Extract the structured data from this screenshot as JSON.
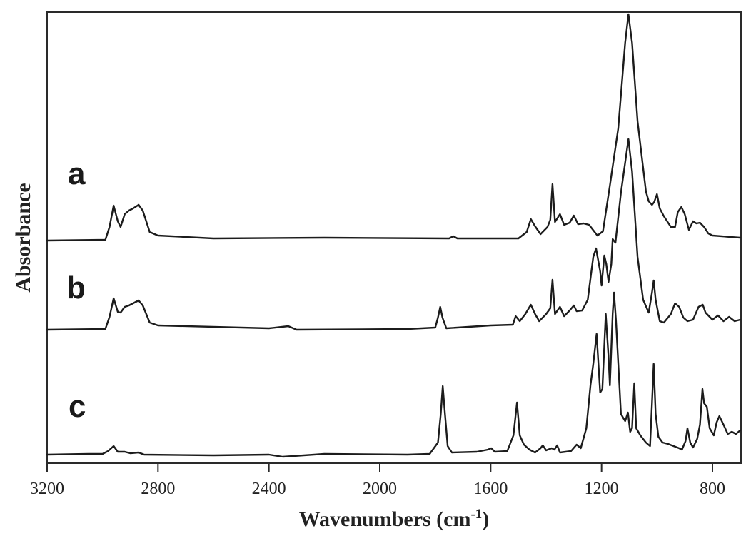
{
  "chart_data": {
    "type": "line",
    "title": "",
    "xlabel": "Wavenumbers (cm-1)",
    "xlabel_main": "Wavenumbers (cm",
    "xlabel_sup": "-1",
    "xlabel_close": ")",
    "ylabel": "Absorbance",
    "xlim": [
      3200,
      700
    ],
    "x_reversed": true,
    "x_ticks": [
      3200,
      2800,
      2400,
      2000,
      1600,
      1200,
      800
    ],
    "x_tick_labels": [
      "3200",
      "2800",
      "2400",
      "2000",
      "1600",
      "1200",
      "800"
    ],
    "y_ticks": [],
    "grid": false,
    "legend": "inline labels a, b, c",
    "note": "Stacked FTIR spectra; y values given in plot-pixel units (smaller = higher absorbance), vertically offset per series.",
    "series": [
      {
        "name": "a",
        "label": "a",
        "points": [
          [
            3200,
            337
          ],
          [
            2990,
            336
          ],
          [
            2975,
            318
          ],
          [
            2960,
            288
          ],
          [
            2945,
            310
          ],
          [
            2935,
            318
          ],
          [
            2920,
            300
          ],
          [
            2905,
            295
          ],
          [
            2890,
            292
          ],
          [
            2870,
            287
          ],
          [
            2855,
            295
          ],
          [
            2830,
            325
          ],
          [
            2800,
            330
          ],
          [
            2600,
            334
          ],
          [
            2200,
            333
          ],
          [
            1750,
            334
          ],
          [
            1735,
            331
          ],
          [
            1720,
            334
          ],
          [
            1500,
            334
          ],
          [
            1470,
            325
          ],
          [
            1455,
            307
          ],
          [
            1440,
            317
          ],
          [
            1420,
            328
          ],
          [
            1395,
            318
          ],
          [
            1385,
            308
          ],
          [
            1377,
            258
          ],
          [
            1368,
            311
          ],
          [
            1350,
            300
          ],
          [
            1335,
            315
          ],
          [
            1315,
            312
          ],
          [
            1300,
            302
          ],
          [
            1285,
            314
          ],
          [
            1265,
            313
          ],
          [
            1245,
            315
          ],
          [
            1215,
            330
          ],
          [
            1195,
            324
          ],
          [
            1170,
            260
          ],
          [
            1140,
            180
          ],
          [
            1115,
            60
          ],
          [
            1103,
            20
          ],
          [
            1090,
            60
          ],
          [
            1070,
            170
          ],
          [
            1040,
            268
          ],
          [
            1030,
            282
          ],
          [
            1018,
            287
          ],
          [
            1010,
            283
          ],
          [
            1000,
            272
          ],
          [
            990,
            292
          ],
          [
            975,
            303
          ],
          [
            950,
            318
          ],
          [
            935,
            318
          ],
          [
            925,
            297
          ],
          [
            912,
            290
          ],
          [
            900,
            300
          ],
          [
            885,
            322
          ],
          [
            870,
            310
          ],
          [
            858,
            313
          ],
          [
            845,
            312
          ],
          [
            830,
            318
          ],
          [
            815,
            327
          ],
          [
            800,
            330
          ],
          [
            700,
            333
          ]
        ]
      },
      {
        "name": "b",
        "label": "b",
        "points": [
          [
            3200,
            462
          ],
          [
            2990,
            461
          ],
          [
            2975,
            444
          ],
          [
            2960,
            418
          ],
          [
            2945,
            437
          ],
          [
            2935,
            438
          ],
          [
            2920,
            430
          ],
          [
            2905,
            428
          ],
          [
            2890,
            425
          ],
          [
            2870,
            421
          ],
          [
            2855,
            428
          ],
          [
            2830,
            452
          ],
          [
            2800,
            456
          ],
          [
            2400,
            460
          ],
          [
            2330,
            457
          ],
          [
            2300,
            462
          ],
          [
            1900,
            461
          ],
          [
            1800,
            459
          ],
          [
            1790,
            445
          ],
          [
            1782,
            430
          ],
          [
            1774,
            445
          ],
          [
            1760,
            460
          ],
          [
            1600,
            456
          ],
          [
            1520,
            455
          ],
          [
            1510,
            443
          ],
          [
            1495,
            450
          ],
          [
            1475,
            440
          ],
          [
            1455,
            427
          ],
          [
            1440,
            440
          ],
          [
            1425,
            450
          ],
          [
            1400,
            440
          ],
          [
            1385,
            432
          ],
          [
            1377,
            392
          ],
          [
            1368,
            440
          ],
          [
            1350,
            430
          ],
          [
            1335,
            443
          ],
          [
            1315,
            435
          ],
          [
            1300,
            428
          ],
          [
            1290,
            436
          ],
          [
            1270,
            435
          ],
          [
            1250,
            420
          ],
          [
            1230,
            360
          ],
          [
            1220,
            348
          ],
          [
            1205,
            380
          ],
          [
            1200,
            400
          ],
          [
            1190,
            358
          ],
          [
            1183,
            370
          ],
          [
            1175,
            395
          ],
          [
            1165,
            370
          ],
          [
            1160,
            335
          ],
          [
            1150,
            340
          ],
          [
            1130,
            270
          ],
          [
            1103,
            195
          ],
          [
            1090,
            240
          ],
          [
            1070,
            360
          ],
          [
            1050,
            420
          ],
          [
            1030,
            438
          ],
          [
            1018,
            410
          ],
          [
            1012,
            393
          ],
          [
            1005,
            420
          ],
          [
            990,
            450
          ],
          [
            975,
            452
          ],
          [
            950,
            440
          ],
          [
            935,
            425
          ],
          [
            920,
            430
          ],
          [
            905,
            445
          ],
          [
            890,
            450
          ],
          [
            870,
            448
          ],
          [
            850,
            430
          ],
          [
            835,
            427
          ],
          [
            825,
            438
          ],
          [
            800,
            448
          ],
          [
            780,
            442
          ],
          [
            760,
            450
          ],
          [
            740,
            444
          ],
          [
            720,
            450
          ],
          [
            700,
            448
          ]
        ]
      },
      {
        "name": "c",
        "label": "c",
        "points": [
          [
            3200,
            637
          ],
          [
            3050,
            636
          ],
          [
            3000,
            636
          ],
          [
            2980,
            632
          ],
          [
            2960,
            625
          ],
          [
            2945,
            633
          ],
          [
            2920,
            633
          ],
          [
            2900,
            635
          ],
          [
            2870,
            634
          ],
          [
            2850,
            637
          ],
          [
            2600,
            638
          ],
          [
            2400,
            637
          ],
          [
            2350,
            640
          ],
          [
            2200,
            636
          ],
          [
            1900,
            637
          ],
          [
            1820,
            636
          ],
          [
            1790,
            620
          ],
          [
            1780,
            580
          ],
          [
            1773,
            541
          ],
          [
            1765,
            580
          ],
          [
            1755,
            625
          ],
          [
            1740,
            634
          ],
          [
            1650,
            633
          ],
          [
            1610,
            630
          ],
          [
            1598,
            628
          ],
          [
            1585,
            633
          ],
          [
            1540,
            632
          ],
          [
            1518,
            610
          ],
          [
            1505,
            564
          ],
          [
            1495,
            610
          ],
          [
            1480,
            623
          ],
          [
            1460,
            630
          ],
          [
            1440,
            634
          ],
          [
            1420,
            628
          ],
          [
            1412,
            624
          ],
          [
            1400,
            631
          ],
          [
            1380,
            628
          ],
          [
            1370,
            630
          ],
          [
            1360,
            624
          ],
          [
            1350,
            634
          ],
          [
            1310,
            632
          ],
          [
            1290,
            623
          ],
          [
            1275,
            628
          ],
          [
            1255,
            600
          ],
          [
            1240,
            540
          ],
          [
            1230,
            510
          ],
          [
            1218,
            468
          ],
          [
            1205,
            550
          ],
          [
            1197,
            545
          ],
          [
            1185,
            440
          ],
          [
            1175,
            500
          ],
          [
            1170,
            540
          ],
          [
            1160,
            440
          ],
          [
            1155,
            410
          ],
          [
            1148,
            450
          ],
          [
            1130,
            580
          ],
          [
            1115,
            590
          ],
          [
            1105,
            578
          ],
          [
            1097,
            605
          ],
          [
            1090,
            600
          ],
          [
            1082,
            537
          ],
          [
            1075,
            600
          ],
          [
            1060,
            610
          ],
          [
            1040,
            620
          ],
          [
            1025,
            625
          ],
          [
            1018,
            565
          ],
          [
            1012,
            510
          ],
          [
            1005,
            580
          ],
          [
            995,
            612
          ],
          [
            980,
            620
          ],
          [
            960,
            622
          ],
          [
            940,
            625
          ],
          [
            920,
            628
          ],
          [
            910,
            630
          ],
          [
            897,
            618
          ],
          [
            890,
            600
          ],
          [
            880,
            620
          ],
          [
            870,
            627
          ],
          [
            855,
            615
          ],
          [
            845,
            595
          ],
          [
            836,
            545
          ],
          [
            830,
            565
          ],
          [
            820,
            570
          ],
          [
            810,
            600
          ],
          [
            795,
            610
          ],
          [
            785,
            592
          ],
          [
            775,
            583
          ],
          [
            760,
            595
          ],
          [
            745,
            608
          ],
          [
            730,
            605
          ],
          [
            715,
            608
          ],
          [
            700,
            603
          ]
        ]
      }
    ]
  },
  "labels": {
    "series_a": "a",
    "series_b": "b",
    "series_c": "c"
  },
  "colors": {
    "line": "#1c1c1c",
    "frame": "#2a2a2a",
    "background": "#ffffff"
  }
}
